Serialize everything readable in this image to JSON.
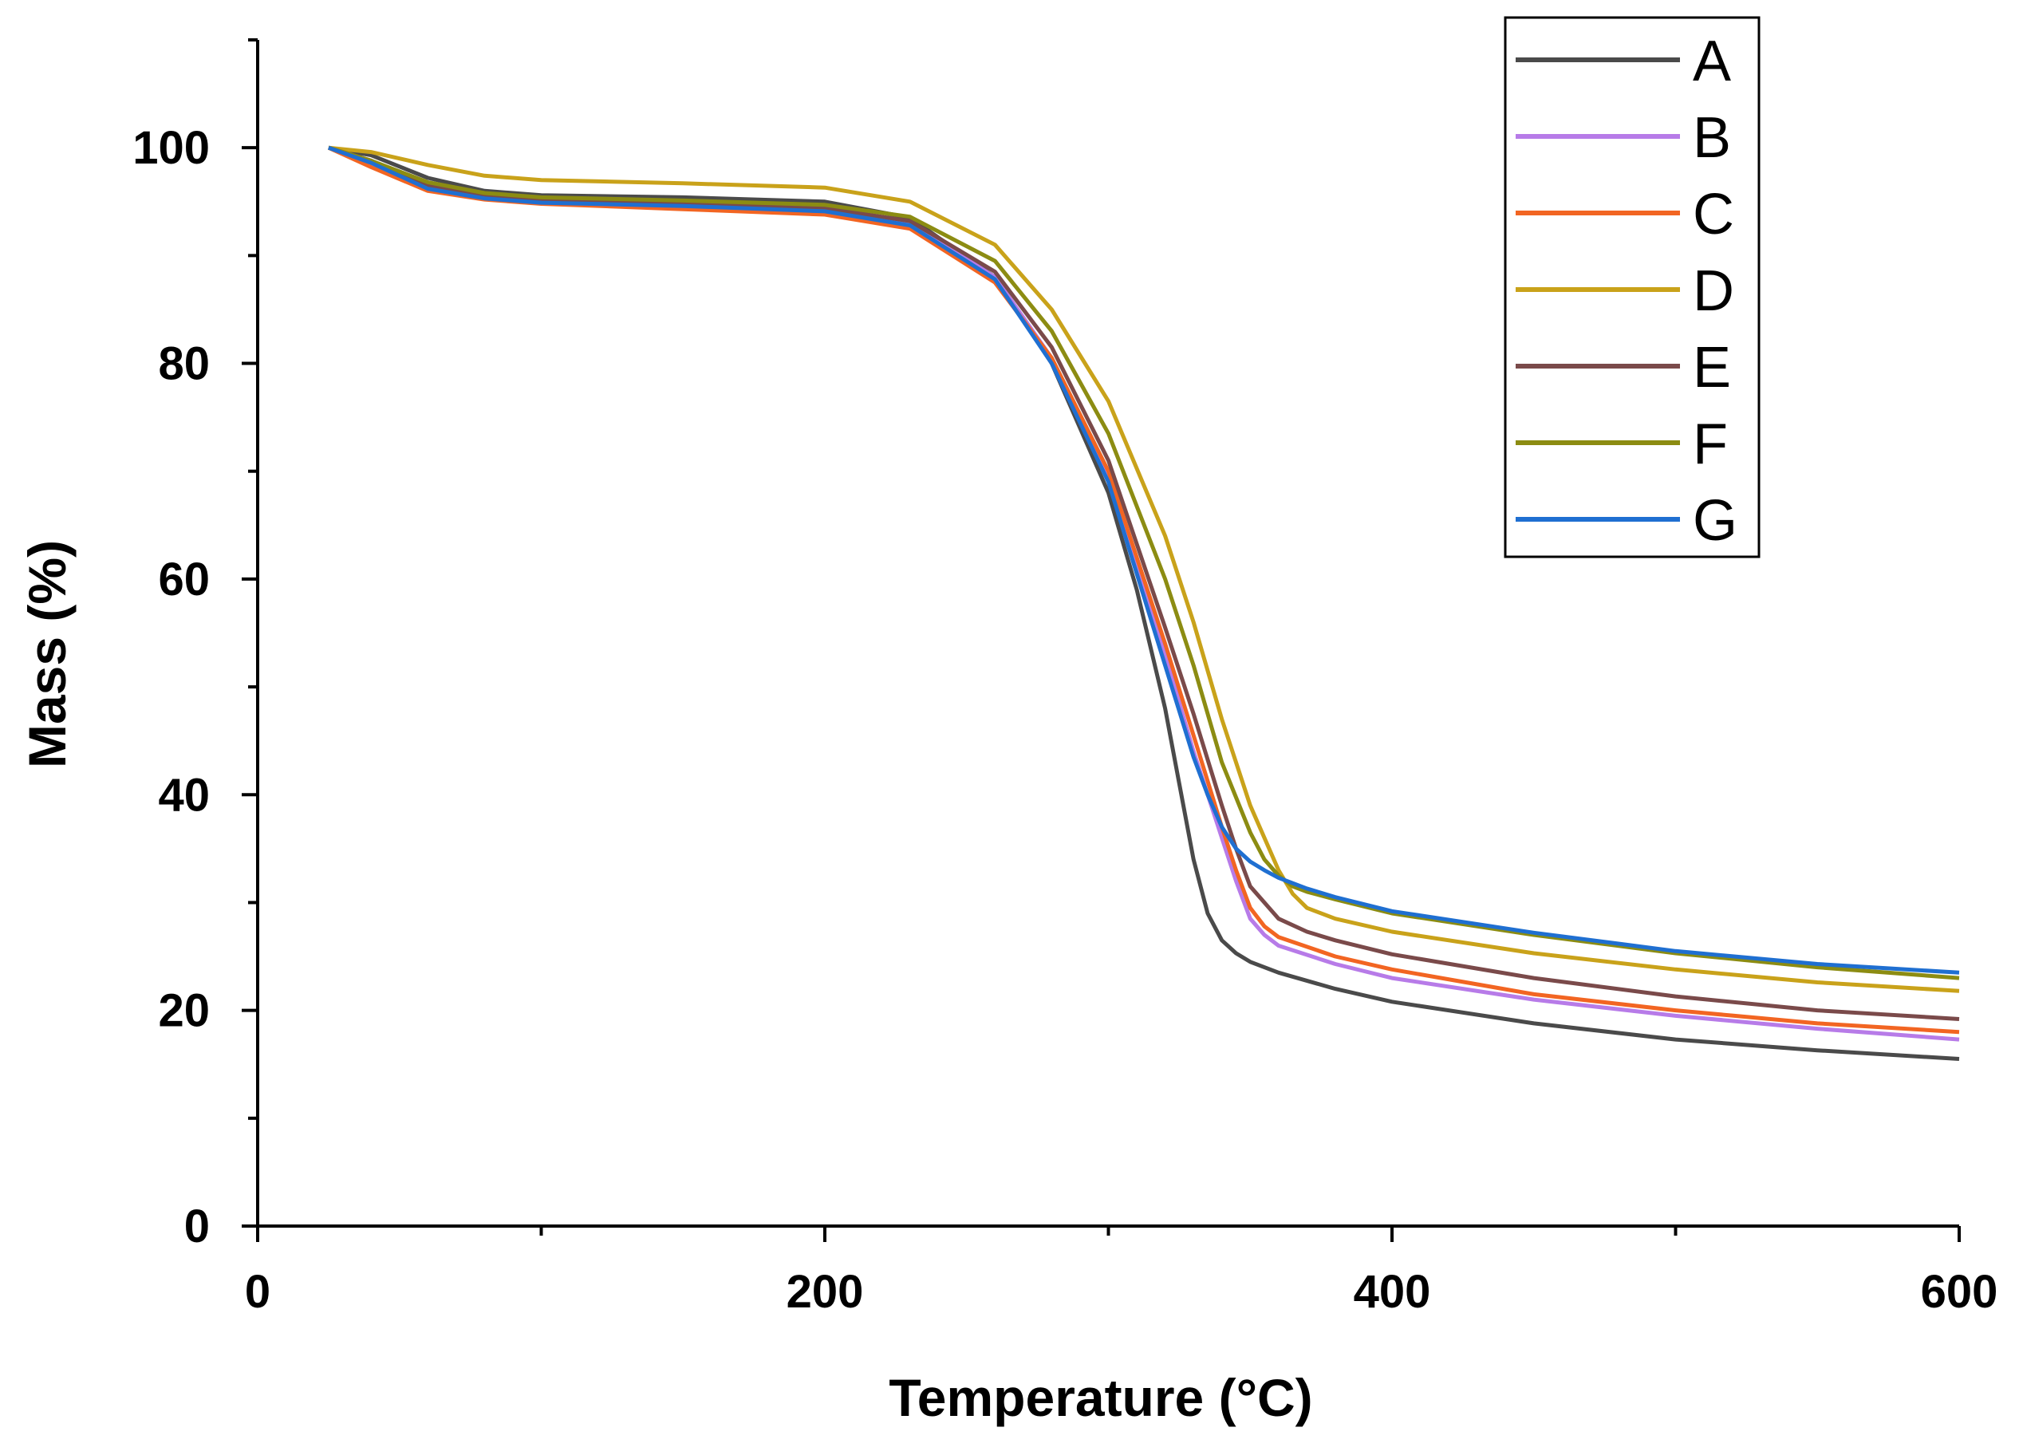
{
  "chart_data": {
    "type": "line",
    "title": "",
    "xlabel": "Temperature (°C)",
    "ylabel": "Mass (%)",
    "xlim": [
      0,
      600
    ],
    "ylim": [
      0,
      110
    ],
    "xticks": [
      0,
      200,
      400,
      600
    ],
    "xticks_minor": [
      100,
      300,
      500
    ],
    "yticks": [
      0,
      20,
      40,
      60,
      80,
      100
    ],
    "yticks_minor": [
      10,
      30,
      50,
      70,
      90,
      110
    ],
    "xtick_labels": [
      "0",
      "200",
      "400",
      "600"
    ],
    "ytick_labels": [
      "0",
      "20",
      "40",
      "60",
      "80",
      "100"
    ],
    "grid": false,
    "legend_position": "top-right",
    "series": [
      {
        "name": "A",
        "color": "#4a4a4a",
        "x": [
          25,
          40,
          60,
          80,
          100,
          150,
          200,
          230,
          260,
          280,
          300,
          310,
          320,
          325,
          330,
          335,
          340,
          345,
          350,
          360,
          380,
          400,
          450,
          500,
          550,
          600
        ],
        "y": [
          100,
          99.3,
          97.2,
          96.0,
          95.6,
          95.4,
          95.0,
          93.5,
          88.0,
          80.0,
          68.0,
          59.0,
          48.0,
          41.0,
          34.0,
          29.0,
          26.5,
          25.3,
          24.5,
          23.5,
          22.0,
          20.8,
          18.8,
          17.3,
          16.3,
          15.5
        ]
      },
      {
        "name": "B",
        "color": "#b77be8",
        "x": [
          25,
          40,
          60,
          80,
          100,
          150,
          200,
          230,
          260,
          280,
          300,
          320,
          330,
          340,
          345,
          350,
          355,
          360,
          380,
          400,
          450,
          500,
          550,
          600
        ],
        "y": [
          100,
          98.8,
          96.5,
          95.4,
          95.0,
          94.7,
          94.2,
          93.0,
          88.0,
          80.5,
          69.5,
          53.0,
          44.0,
          36.0,
          32.0,
          28.5,
          27.0,
          26.0,
          24.3,
          23.0,
          21.0,
          19.5,
          18.3,
          17.3
        ]
      },
      {
        "name": "C",
        "color": "#f26522",
        "x": [
          25,
          40,
          60,
          80,
          100,
          150,
          200,
          230,
          260,
          280,
          300,
          320,
          330,
          340,
          345,
          350,
          355,
          360,
          380,
          400,
          450,
          500,
          550,
          600
        ],
        "y": [
          100,
          98.2,
          96.0,
          95.2,
          94.8,
          94.3,
          93.8,
          92.5,
          87.5,
          80.5,
          70.0,
          54.0,
          45.5,
          37.0,
          33.0,
          29.5,
          27.8,
          26.8,
          25.0,
          23.8,
          21.5,
          20.0,
          18.8,
          18.0
        ]
      },
      {
        "name": "D",
        "color": "#c9a21a",
        "x": [
          25,
          40,
          60,
          80,
          100,
          150,
          200,
          230,
          260,
          280,
          300,
          320,
          330,
          340,
          350,
          360,
          365,
          370,
          380,
          400,
          450,
          500,
          550,
          600
        ],
        "y": [
          100,
          99.6,
          98.4,
          97.4,
          97.0,
          96.7,
          96.3,
          95.0,
          91.0,
          85.0,
          76.5,
          64.0,
          56.0,
          47.0,
          39.0,
          33.0,
          30.8,
          29.5,
          28.5,
          27.3,
          25.3,
          23.8,
          22.6,
          21.8
        ]
      },
      {
        "name": "E",
        "color": "#7a4a4a",
        "x": [
          25,
          40,
          60,
          80,
          100,
          150,
          200,
          230,
          260,
          280,
          300,
          320,
          330,
          340,
          345,
          350,
          360,
          370,
          380,
          400,
          450,
          500,
          550,
          600
        ],
        "y": [
          100,
          98.8,
          96.5,
          95.5,
          95.1,
          94.8,
          94.4,
          93.2,
          88.5,
          81.5,
          71.0,
          55.5,
          47.5,
          39.0,
          35.0,
          31.5,
          28.5,
          27.3,
          26.5,
          25.2,
          23.0,
          21.3,
          20.0,
          19.2
        ]
      },
      {
        "name": "F",
        "color": "#8c8c12",
        "x": [
          25,
          40,
          60,
          80,
          100,
          150,
          200,
          230,
          260,
          280,
          300,
          320,
          330,
          340,
          350,
          355,
          360,
          365,
          370,
          380,
          400,
          450,
          500,
          550,
          600
        ],
        "y": [
          100,
          98.8,
          96.8,
          95.8,
          95.4,
          95.1,
          94.7,
          93.6,
          89.5,
          83.0,
          73.5,
          60.0,
          52.0,
          43.0,
          36.5,
          34.0,
          32.5,
          31.5,
          31.0,
          30.3,
          29.0,
          27.0,
          25.3,
          24.0,
          23.0
        ]
      },
      {
        "name": "G",
        "color": "#1f6fd1",
        "x": [
          25,
          40,
          60,
          80,
          100,
          150,
          200,
          230,
          260,
          280,
          300,
          320,
          330,
          335,
          340,
          345,
          350,
          355,
          360,
          370,
          380,
          400,
          450,
          500,
          550,
          600
        ],
        "y": [
          100,
          98.6,
          96.2,
          95.3,
          94.9,
          94.6,
          94.1,
          92.8,
          87.8,
          80.0,
          69.0,
          52.0,
          43.5,
          40.0,
          37.0,
          35.0,
          33.8,
          33.0,
          32.3,
          31.3,
          30.5,
          29.2,
          27.2,
          25.5,
          24.3,
          23.5
        ]
      }
    ]
  }
}
